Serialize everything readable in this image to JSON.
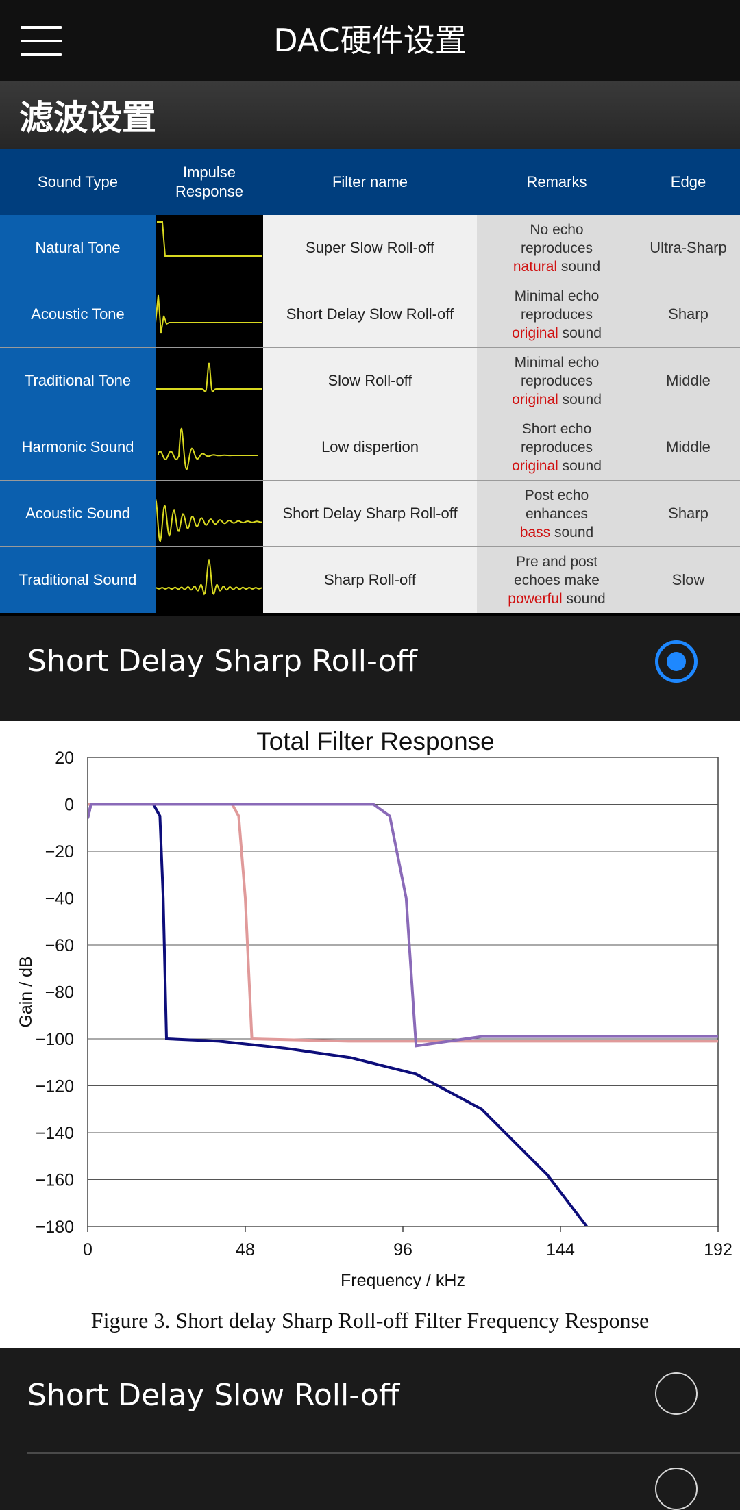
{
  "app": {
    "title": "DAC硬件设置"
  },
  "icons": {
    "menu": "hamburger-menu-icon"
  },
  "section": {
    "title": "滤波设置"
  },
  "table": {
    "headers": {
      "sound_type": "Sound Type",
      "impulse_line1": "Impulse",
      "impulse_line2": "Response",
      "filter_name": "Filter name",
      "remarks": "Remarks",
      "edge": "Edge"
    },
    "rows": [
      {
        "type": "Natural Tone",
        "filter": "Super Slow Roll-off",
        "rem1": "No echo",
        "rem2": "reproduces",
        "rem_hl": "natural",
        "rem_tail": "sound",
        "edge": "Ultra-Sharp"
      },
      {
        "type": "Acoustic Tone",
        "filter": "Short Delay Slow Roll-off",
        "rem1": "Minimal echo",
        "rem2": "reproduces",
        "rem_hl": "original",
        "rem_tail": "sound",
        "edge": "Sharp"
      },
      {
        "type": "Traditional Tone",
        "filter": "Slow Roll-off",
        "rem1": "Minimal echo",
        "rem2": "reproduces",
        "rem_hl": "original",
        "rem_tail": "sound",
        "edge": "Middle"
      },
      {
        "type": "Harmonic Sound",
        "filter": "Low dispertion",
        "rem1": "Short echo",
        "rem2": "reproduces",
        "rem_hl": "original",
        "rem_tail": "sound",
        "edge": "Middle"
      },
      {
        "type": "Acoustic Sound",
        "filter": "Short Delay Sharp Roll-off",
        "rem1": "Post echo",
        "rem2": "enhances",
        "rem_hl": "bass",
        "rem_tail": "sound",
        "edge": "Sharp"
      },
      {
        "type": "Traditional Sound",
        "filter": "Sharp Roll-off",
        "rem1": "Pre and post",
        "rem2": "echoes make",
        "rem_hl": "powerful",
        "rem_tail": "sound",
        "edge": "Slow"
      }
    ]
  },
  "options": [
    {
      "label": "Short Delay Sharp Roll-off",
      "selected": true
    },
    {
      "label": "Short Delay Slow Roll-off",
      "selected": false
    }
  ],
  "colors": {
    "accent": "#1e88ff",
    "header_blue": "#003e7e",
    "type_blue": "#0b5fae",
    "impulse_yellow": "#d8d820",
    "highlight_red": "#d01010"
  },
  "chart_data": {
    "type": "line",
    "title": "Total Filter Response",
    "xlabel": "Frequency / kHz",
    "ylabel": "Gain / dB",
    "xlim": [
      0,
      192
    ],
    "ylim": [
      -180,
      20
    ],
    "xticks": [
      0,
      48,
      96,
      144,
      192
    ],
    "yticks": [
      20,
      0,
      -20,
      -40,
      -60,
      -80,
      -100,
      -120,
      -140,
      -160,
      -180
    ],
    "grid": true,
    "series": [
      {
        "color": "#0d0d7a",
        "points": [
          [
            0,
            -6
          ],
          [
            1,
            0
          ],
          [
            20,
            0
          ],
          [
            22,
            -5
          ],
          [
            23,
            -40
          ],
          [
            24,
            -100
          ],
          [
            40,
            -101
          ],
          [
            60,
            -104
          ],
          [
            80,
            -108
          ],
          [
            100,
            -115
          ],
          [
            120,
            -130
          ],
          [
            140,
            -158
          ],
          [
            152,
            -180
          ]
        ]
      },
      {
        "color": "#e09a9a",
        "points": [
          [
            0,
            0
          ],
          [
            44,
            0
          ],
          [
            46,
            -5
          ],
          [
            48,
            -40
          ],
          [
            50,
            -100
          ],
          [
            80,
            -101
          ],
          [
            120,
            -101
          ],
          [
            160,
            -101
          ],
          [
            192,
            -101
          ]
        ]
      },
      {
        "color": "#8a6ab8",
        "points": [
          [
            0,
            -6
          ],
          [
            1,
            0
          ],
          [
            87,
            0
          ],
          [
            92,
            -5
          ],
          [
            97,
            -40
          ],
          [
            100,
            -103
          ],
          [
            120,
            -99
          ],
          [
            160,
            -99
          ],
          [
            192,
            -99
          ]
        ]
      }
    ]
  },
  "caption": "Figure 3. Short delay Sharp Roll-off Filter Frequency Response"
}
